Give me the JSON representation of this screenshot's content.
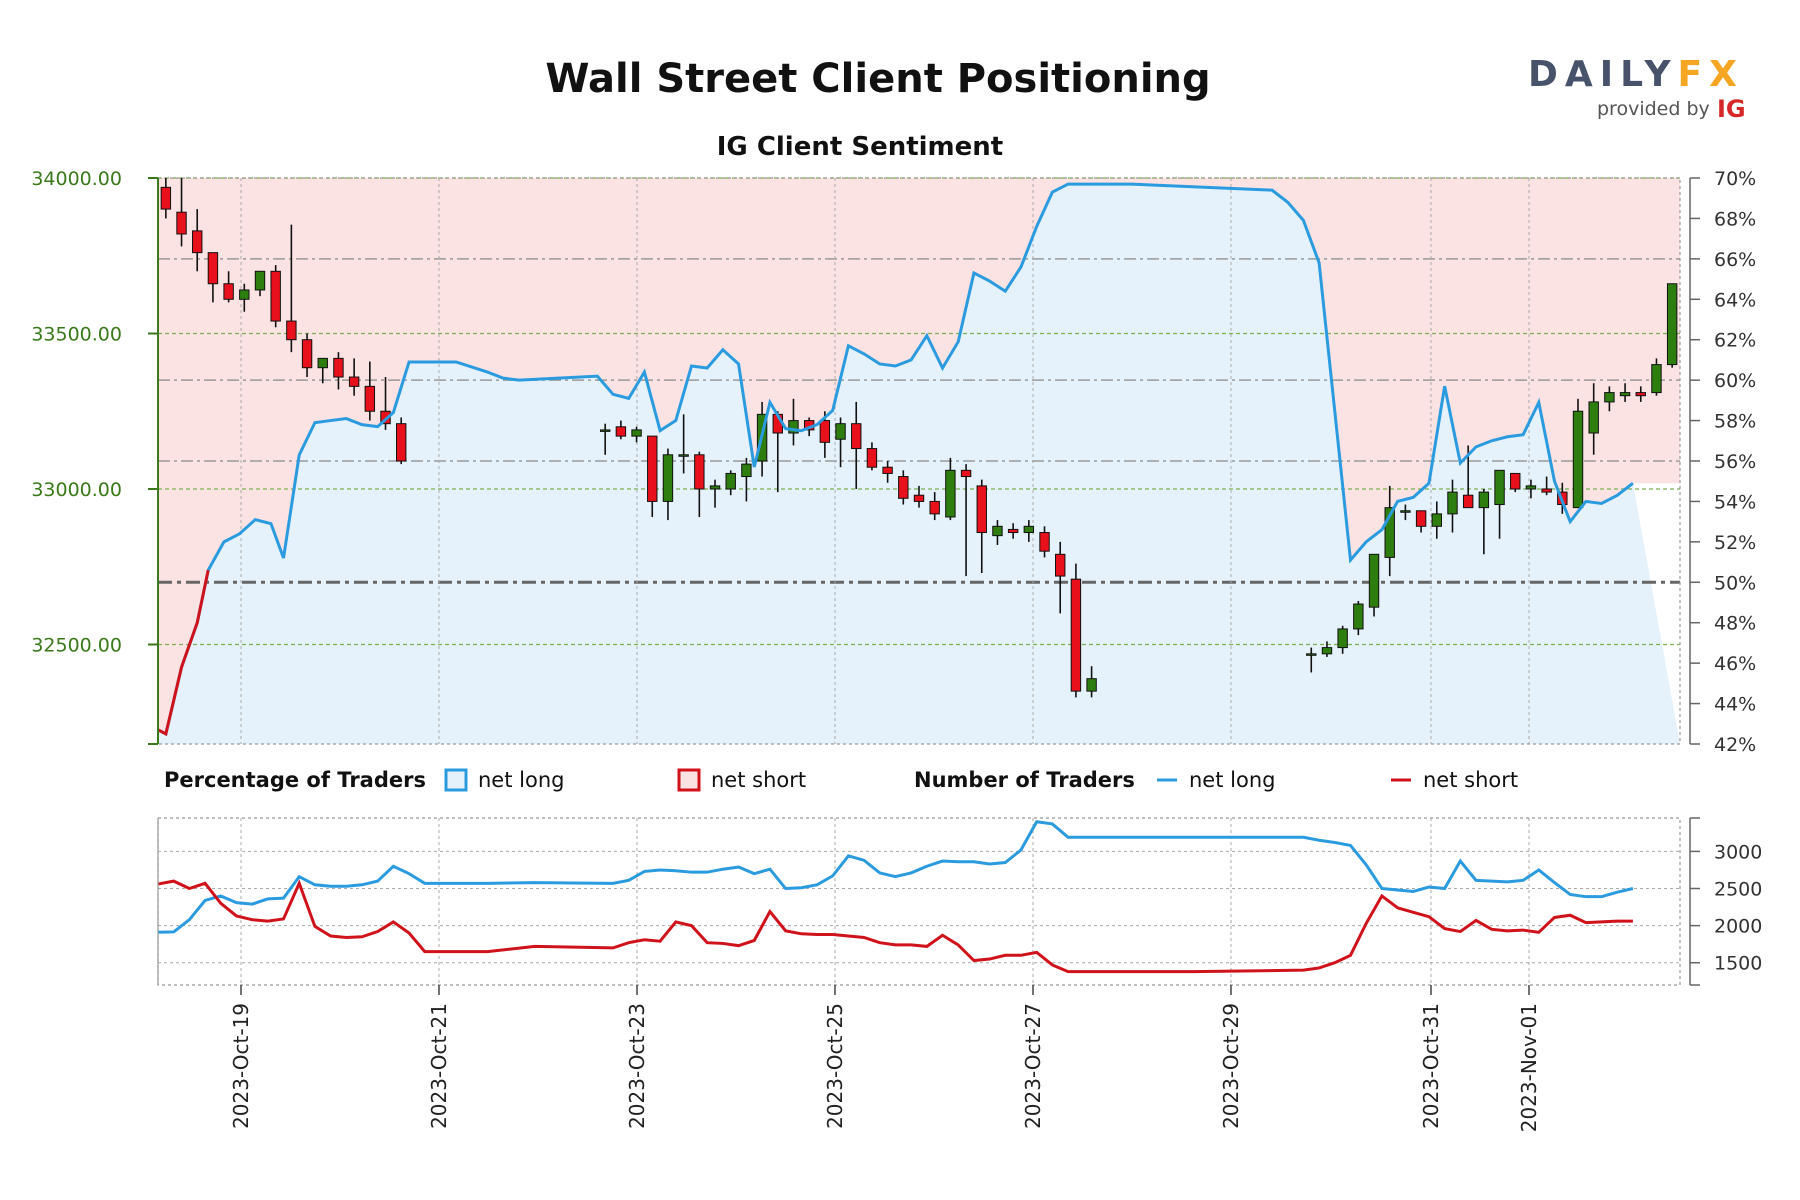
{
  "title": "Wall Street Client Positioning",
  "subtitle": "IG Client Sentiment",
  "brand": {
    "name_part1": "DAILY",
    "name_part2": "FX",
    "provided_by": "provided by",
    "ig": "IG"
  },
  "colors": {
    "net_long": "#2b9be0",
    "net_short": "#d0121b",
    "bull_candle": "#2e7d0f",
    "bear_candle": "#e8101a",
    "short_zone_fill": "#fbe3e3",
    "long_zone_fill": "#e5f2fb",
    "price_axis": "#3a7a1a"
  },
  "legend": {
    "pct_header": "Percentage of Traders",
    "pct_long": "net long",
    "pct_short": "net short",
    "num_header": "Number of Traders",
    "num_long": "net long",
    "num_short": "net short"
  },
  "chart_data": {
    "type": "line",
    "x_tick_labels": [
      "2023-Oct-19",
      "2023-Oct-21",
      "2023-Oct-23",
      "2023-Oct-25",
      "2023-Oct-27",
      "2023-Oct-29",
      "2023-Oct-31",
      "2023-Nov-01"
    ],
    "price_axis": {
      "ticks": [
        34000,
        33500,
        33000,
        32500
      ],
      "tick_labels": [
        "34000.00",
        "33500.00",
        "33000.00",
        "32500.00"
      ],
      "ylim": [
        32180,
        34000
      ]
    },
    "percent_axis": {
      "ticks": [
        70,
        68,
        66,
        64,
        62,
        60,
        58,
        56,
        54,
        52,
        50,
        48,
        46,
        44,
        42
      ],
      "tick_labels": [
        "70%",
        "68%",
        "66%",
        "64%",
        "62%",
        "60%",
        "58%",
        "56%",
        "54%",
        "52%",
        "50%",
        "48%",
        "46%",
        "44%",
        "42%"
      ],
      "ylim": [
        42,
        70
      ]
    },
    "traders_axis": {
      "ticks": [
        3000,
        2500,
        2000,
        1500
      ],
      "tick_labels": [
        "3000",
        "2500",
        "2000",
        "1500"
      ],
      "ylim": [
        1200,
        3450
      ]
    },
    "net_long_pct": [
      [
        0.0,
        42.7
      ],
      [
        0.5,
        42.5
      ],
      [
        1.5,
        45.8
      ],
      [
        2.5,
        48.0
      ],
      [
        3.2,
        50.6
      ],
      [
        4.2,
        52.0
      ],
      [
        5.2,
        52.4
      ],
      [
        6.2,
        53.1
      ],
      [
        7.2,
        52.9
      ],
      [
        8.0,
        51.2
      ],
      [
        9.0,
        56.3
      ],
      [
        10.0,
        57.9
      ],
      [
        11.0,
        58.0
      ],
      [
        12.0,
        58.1
      ],
      [
        13.0,
        57.8
      ],
      [
        14.0,
        57.7
      ],
      [
        15.0,
        58.4
      ],
      [
        16.0,
        60.9
      ],
      [
        19.0,
        60.9
      ],
      [
        21.0,
        60.4
      ],
      [
        22.0,
        60.1
      ],
      [
        23.0,
        60.0
      ],
      [
        28.0,
        60.2
      ],
      [
        29.0,
        59.3
      ],
      [
        30.0,
        59.1
      ],
      [
        31.0,
        60.4
      ],
      [
        32.0,
        57.5
      ],
      [
        33.0,
        58.0
      ],
      [
        34.0,
        60.7
      ],
      [
        35.0,
        60.6
      ],
      [
        36.0,
        61.5
      ],
      [
        37.0,
        60.8
      ],
      [
        38.0,
        55.7
      ],
      [
        39.0,
        58.9
      ],
      [
        40.0,
        57.6
      ],
      [
        41.0,
        57.5
      ],
      [
        42.0,
        57.8
      ],
      [
        43.0,
        58.5
      ],
      [
        44.0,
        61.7
      ],
      [
        45.0,
        61.3
      ],
      [
        46.0,
        60.8
      ],
      [
        47.0,
        60.7
      ],
      [
        48.0,
        61.0
      ],
      [
        49.0,
        62.2
      ],
      [
        50.0,
        60.6
      ],
      [
        51.0,
        61.9
      ],
      [
        52.0,
        65.3
      ],
      [
        53.0,
        64.9
      ],
      [
        54.0,
        64.4
      ],
      [
        55.0,
        65.6
      ],
      [
        56.0,
        67.6
      ],
      [
        57.0,
        69.3
      ],
      [
        58.0,
        69.7
      ],
      [
        62.0,
        69.7
      ],
      [
        71.0,
        69.4
      ],
      [
        72.0,
        68.8
      ],
      [
        73.0,
        67.9
      ],
      [
        74.0,
        65.8
      ],
      [
        76.0,
        51.1
      ],
      [
        77.0,
        52.0
      ],
      [
        78.0,
        52.6
      ],
      [
        79.0,
        54.0
      ],
      [
        80.0,
        54.2
      ],
      [
        81.0,
        54.9
      ],
      [
        82.0,
        59.7
      ],
      [
        83.0,
        55.9
      ],
      [
        84.0,
        56.7
      ],
      [
        85.0,
        57.0
      ],
      [
        86.0,
        57.2
      ],
      [
        87.0,
        57.3
      ],
      [
        88.0,
        58.9
      ],
      [
        89.0,
        55.0
      ],
      [
        90.0,
        53.0
      ],
      [
        91.0,
        54.0
      ],
      [
        92.0,
        53.9
      ],
      [
        93.0,
        54.3
      ],
      [
        94.0,
        54.9
      ]
    ],
    "ohlc": [
      [
        0.5,
        33970,
        34000,
        33870,
        33900
      ],
      [
        1.5,
        33890,
        34000,
        33780,
        33820
      ],
      [
        2.5,
        33830,
        33900,
        33700,
        33760
      ],
      [
        3.5,
        33760,
        33760,
        33600,
        33660
      ],
      [
        4.5,
        33660,
        33700,
        33600,
        33610
      ],
      [
        5.5,
        33610,
        33660,
        33570,
        33640
      ],
      [
        6.5,
        33640,
        33700,
        33620,
        33700
      ],
      [
        7.5,
        33700,
        33720,
        33520,
        33540
      ],
      [
        8.5,
        33540,
        33850,
        33440,
        33480
      ],
      [
        9.5,
        33480,
        33500,
        33360,
        33390
      ],
      [
        10.5,
        33390,
        33420,
        33340,
        33420
      ],
      [
        11.5,
        33420,
        33440,
        33320,
        33360
      ],
      [
        12.5,
        33360,
        33420,
        33300,
        33330
      ],
      [
        13.5,
        33330,
        33410,
        33220,
        33250
      ],
      [
        14.5,
        33250,
        33360,
        33190,
        33210
      ],
      [
        15.5,
        33210,
        33230,
        33080,
        33090
      ],
      [
        28.5,
        33190,
        33210,
        33110,
        33190
      ],
      [
        29.5,
        33200,
        33220,
        33160,
        33170
      ],
      [
        30.5,
        33170,
        33200,
        33150,
        33190
      ],
      [
        31.5,
        33170,
        33170,
        32910,
        32960
      ],
      [
        32.5,
        32960,
        33130,
        32900,
        33110
      ],
      [
        33.5,
        33110,
        33240,
        33050,
        33110
      ],
      [
        34.5,
        33110,
        33120,
        32910,
        33000
      ],
      [
        35.5,
        33000,
        33030,
        32940,
        33010
      ],
      [
        36.5,
        33000,
        33060,
        32980,
        33050
      ],
      [
        37.5,
        33040,
        33100,
        32960,
        33080
      ],
      [
        38.5,
        33090,
        33280,
        33040,
        33240
      ],
      [
        39.5,
        33240,
        33250,
        32990,
        33180
      ],
      [
        40.5,
        33180,
        33290,
        33140,
        33220
      ],
      [
        41.5,
        33220,
        33230,
        33170,
        33190
      ],
      [
        42.5,
        33220,
        33250,
        33100,
        33150
      ],
      [
        43.5,
        33160,
        33230,
        33070,
        33210
      ],
      [
        44.5,
        33210,
        33280,
        33000,
        33130
      ],
      [
        45.5,
        33130,
        33150,
        33060,
        33070
      ],
      [
        46.5,
        33070,
        33090,
        33020,
        33050
      ],
      [
        47.5,
        33040,
        33060,
        32950,
        32970
      ],
      [
        48.5,
        32980,
        33010,
        32940,
        32960
      ],
      [
        49.5,
        32960,
        32990,
        32900,
        32920
      ],
      [
        50.5,
        32910,
        33100,
        32900,
        33060
      ],
      [
        51.5,
        33060,
        33080,
        32720,
        33040
      ],
      [
        52.5,
        33010,
        33030,
        32730,
        32860
      ],
      [
        53.5,
        32850,
        32900,
        32820,
        32880
      ],
      [
        54.5,
        32870,
        32890,
        32840,
        32860
      ],
      [
        55.5,
        32860,
        32900,
        32830,
        32880
      ],
      [
        56.5,
        32860,
        32880,
        32780,
        32800
      ],
      [
        57.5,
        32790,
        32830,
        32600,
        32720
      ],
      [
        58.5,
        32710,
        32760,
        32330,
        32350
      ],
      [
        59.5,
        32350,
        32430,
        32330,
        32390
      ],
      [
        73.5,
        32470,
        32490,
        32410,
        32470
      ],
      [
        74.5,
        32470,
        32510,
        32460,
        32490
      ],
      [
        75.5,
        32490,
        32560,
        32470,
        32550
      ],
      [
        76.5,
        32550,
        32640,
        32530,
        32630
      ],
      [
        77.5,
        32620,
        32790,
        32590,
        32790
      ],
      [
        78.5,
        32780,
        33010,
        32720,
        32940
      ],
      [
        79.5,
        32930,
        32950,
        32900,
        32930
      ],
      [
        80.5,
        32930,
        32930,
        32860,
        32880
      ],
      [
        81.5,
        32880,
        32960,
        32840,
        32920
      ],
      [
        82.5,
        32920,
        33030,
        32860,
        32990
      ],
      [
        83.5,
        32980,
        33140,
        32950,
        32940
      ],
      [
        84.5,
        32940,
        33000,
        32790,
        32990
      ],
      [
        85.5,
        32950,
        33060,
        32840,
        33060
      ],
      [
        86.5,
        33050,
        33050,
        32990,
        33000
      ],
      [
        87.5,
        33000,
        33030,
        32970,
        33010
      ],
      [
        88.5,
        33000,
        33040,
        32980,
        32990
      ],
      [
        89.5,
        32990,
        33020,
        32920,
        32950
      ],
      [
        90.5,
        32940,
        33290,
        32940,
        33250
      ],
      [
        91.5,
        33180,
        33340,
        33110,
        33280
      ],
      [
        92.5,
        33280,
        33330,
        33250,
        33310
      ],
      [
        93.5,
        33300,
        33340,
        33280,
        33310
      ],
      [
        94.5,
        33310,
        33330,
        33280,
        33300
      ],
      [
        95.5,
        33310,
        33420,
        33300,
        33400
      ],
      [
        96.5,
        33400,
        33660,
        33390,
        33660
      ]
    ],
    "net_long_count": [
      [
        0,
        1910
      ],
      [
        1,
        1915
      ],
      [
        2,
        2080
      ],
      [
        3,
        2340
      ],
      [
        4,
        2400
      ],
      [
        5,
        2310
      ],
      [
        6,
        2290
      ],
      [
        7,
        2360
      ],
      [
        8,
        2370
      ],
      [
        9,
        2660
      ],
      [
        10,
        2550
      ],
      [
        11,
        2530
      ],
      [
        12,
        2530
      ],
      [
        13,
        2550
      ],
      [
        14,
        2600
      ],
      [
        15,
        2800
      ],
      [
        16,
        2700
      ],
      [
        17,
        2570
      ],
      [
        21,
        2570
      ],
      [
        24,
        2580
      ],
      [
        29,
        2570
      ],
      [
        30,
        2610
      ],
      [
        31,
        2730
      ],
      [
        32,
        2750
      ],
      [
        33,
        2740
      ],
      [
        34,
        2720
      ],
      [
        35,
        2720
      ],
      [
        36,
        2760
      ],
      [
        37,
        2790
      ],
      [
        38,
        2700
      ],
      [
        39,
        2760
      ],
      [
        40,
        2500
      ],
      [
        41,
        2510
      ],
      [
        42,
        2550
      ],
      [
        43,
        2670
      ],
      [
        44,
        2940
      ],
      [
        45,
        2880
      ],
      [
        46,
        2710
      ],
      [
        47,
        2660
      ],
      [
        48,
        2710
      ],
      [
        49,
        2800
      ],
      [
        50,
        2870
      ],
      [
        51,
        2860
      ],
      [
        52,
        2860
      ],
      [
        53,
        2830
      ],
      [
        54,
        2850
      ],
      [
        55,
        3020
      ],
      [
        56,
        3400
      ],
      [
        57,
        3370
      ],
      [
        58,
        3190
      ],
      [
        60,
        3190
      ],
      [
        66,
        3190
      ],
      [
        73,
        3190
      ],
      [
        74,
        3150
      ],
      [
        75,
        3120
      ],
      [
        76,
        3080
      ],
      [
        77,
        2820
      ],
      [
        78,
        2500
      ],
      [
        79,
        2480
      ],
      [
        80,
        2460
      ],
      [
        81,
        2520
      ],
      [
        82,
        2500
      ],
      [
        83,
        2870
      ],
      [
        84,
        2610
      ],
      [
        85,
        2600
      ],
      [
        86,
        2590
      ],
      [
        87,
        2610
      ],
      [
        88,
        2750
      ],
      [
        89,
        2580
      ],
      [
        90,
        2420
      ],
      [
        91,
        2390
      ],
      [
        92,
        2390
      ],
      [
        93,
        2450
      ],
      [
        94,
        2500
      ]
    ],
    "net_short_count": [
      [
        0,
        2560
      ],
      [
        1,
        2600
      ],
      [
        2,
        2500
      ],
      [
        3,
        2570
      ],
      [
        4,
        2300
      ],
      [
        5,
        2130
      ],
      [
        6,
        2080
      ],
      [
        7,
        2060
      ],
      [
        8,
        2090
      ],
      [
        9,
        2570
      ],
      [
        10,
        1990
      ],
      [
        11,
        1860
      ],
      [
        12,
        1840
      ],
      [
        13,
        1850
      ],
      [
        14,
        1920
      ],
      [
        15,
        2050
      ],
      [
        16,
        1900
      ],
      [
        17,
        1650
      ],
      [
        21,
        1650
      ],
      [
        24,
        1720
      ],
      [
        29,
        1700
      ],
      [
        30,
        1770
      ],
      [
        31,
        1810
      ],
      [
        32,
        1790
      ],
      [
        33,
        2050
      ],
      [
        34,
        2000
      ],
      [
        35,
        1770
      ],
      [
        36,
        1760
      ],
      [
        37,
        1730
      ],
      [
        38,
        1800
      ],
      [
        39,
        2190
      ],
      [
        40,
        1930
      ],
      [
        41,
        1890
      ],
      [
        42,
        1880
      ],
      [
        43,
        1880
      ],
      [
        44,
        1860
      ],
      [
        45,
        1840
      ],
      [
        46,
        1770
      ],
      [
        47,
        1740
      ],
      [
        48,
        1740
      ],
      [
        49,
        1720
      ],
      [
        50,
        1870
      ],
      [
        51,
        1740
      ],
      [
        52,
        1530
      ],
      [
        53,
        1550
      ],
      [
        54,
        1600
      ],
      [
        55,
        1600
      ],
      [
        56,
        1640
      ],
      [
        57,
        1470
      ],
      [
        58,
        1380
      ],
      [
        60,
        1380
      ],
      [
        66,
        1380
      ],
      [
        73,
        1400
      ],
      [
        74,
        1430
      ],
      [
        75,
        1500
      ],
      [
        76,
        1600
      ],
      [
        77,
        2030
      ],
      [
        78,
        2400
      ],
      [
        79,
        2240
      ],
      [
        80,
        2180
      ],
      [
        81,
        2120
      ],
      [
        82,
        1960
      ],
      [
        83,
        1920
      ],
      [
        84,
        2070
      ],
      [
        85,
        1950
      ],
      [
        86,
        1930
      ],
      [
        87,
        1940
      ],
      [
        88,
        1910
      ],
      [
        89,
        2110
      ],
      [
        90,
        2140
      ],
      [
        91,
        2040
      ],
      [
        92,
        2050
      ],
      [
        93,
        2060
      ],
      [
        94,
        2060
      ]
    ]
  }
}
